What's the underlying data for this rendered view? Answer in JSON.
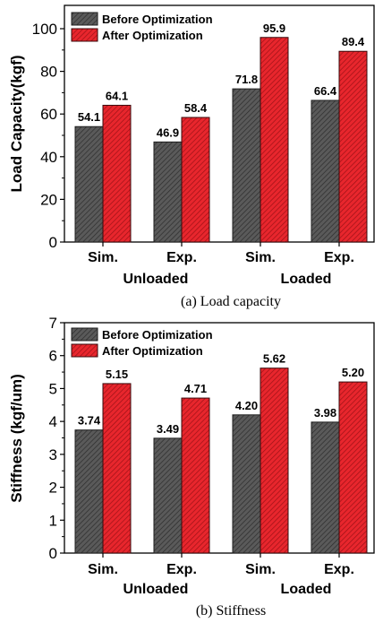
{
  "chart_data": [
    {
      "type": "bar",
      "caption": "(a) Load capacity",
      "ylabel": "Load Capacity(kgf)",
      "ylim": [
        0,
        100
      ],
      "yticks": [
        0,
        20,
        40,
        60,
        80,
        100
      ],
      "categories": [
        "Sim.",
        "Exp.",
        "Sim.",
        "Exp."
      ],
      "groups": [
        "Unloaded",
        "Loaded"
      ],
      "legend_position": "top-left",
      "series": [
        {
          "name": "Before Optimization",
          "color": "#5a5a5a",
          "values": [
            54.1,
            46.9,
            71.8,
            66.4
          ],
          "labels": [
            "54.1",
            "46.9",
            "71.8",
            "66.4"
          ]
        },
        {
          "name": "After Optimization",
          "color": "#e8262d",
          "values": [
            64.1,
            58.4,
            95.9,
            89.4
          ],
          "labels": [
            "64.1",
            "58.4",
            "95.9",
            "89.4"
          ]
        }
      ]
    },
    {
      "type": "bar",
      "caption": "(b) Stiffness",
      "ylabel": "Stiffness (kgf/um)",
      "ylim": [
        0,
        7
      ],
      "yticks": [
        0,
        1,
        2,
        3,
        4,
        5,
        6,
        7
      ],
      "categories": [
        "Sim.",
        "Exp.",
        "Sim.",
        "Exp."
      ],
      "groups": [
        "Unloaded",
        "Loaded"
      ],
      "legend_position": "top-left",
      "series": [
        {
          "name": "Before Optimization",
          "color": "#5a5a5a",
          "values": [
            3.74,
            3.49,
            4.2,
            3.98
          ],
          "labels": [
            "3.74",
            "3.49",
            "4.20",
            "3.98"
          ]
        },
        {
          "name": "After Optimization",
          "color": "#e8262d",
          "values": [
            5.15,
            4.71,
            5.62,
            5.2
          ],
          "labels": [
            "5.15",
            "4.71",
            "5.62",
            "5.20"
          ]
        }
      ]
    }
  ]
}
